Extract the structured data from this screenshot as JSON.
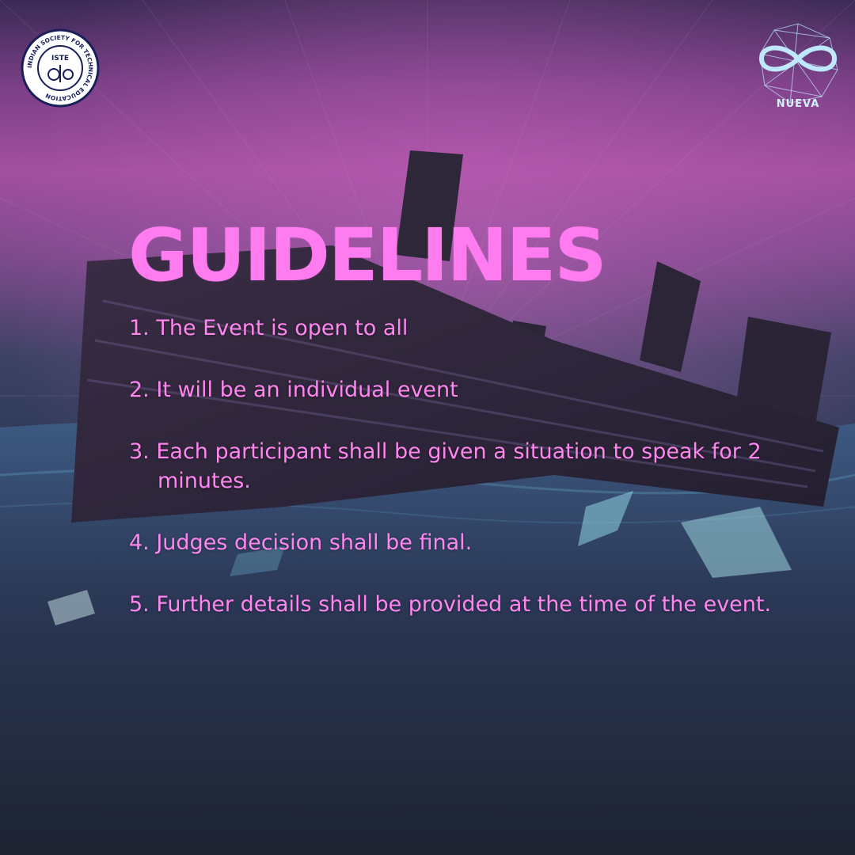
{
  "title": "GUIDELINES",
  "brand": {
    "left_logo": {
      "ring_text": "INDIAN SOCIETY FOR TECHNICAL EDUCATION",
      "center_text": "ISTE"
    },
    "right_logo": {
      "label": "NUEVA"
    }
  },
  "rules": [
    "1. The Event is open to all",
    "2. It will be an individual event",
    "3. Each participant shall be given a situation to speak for 2 minutes.",
    "4. Judges decision shall be final.",
    "5. Further details shall be provided at the time of the event."
  ],
  "colors": {
    "title": "#ff7cf0",
    "text": "#ff86ef",
    "sky_top": "#a24f9f",
    "sea": "#2c3854",
    "ship": "#2a2436",
    "logo_accent": "#bfe8ff"
  }
}
